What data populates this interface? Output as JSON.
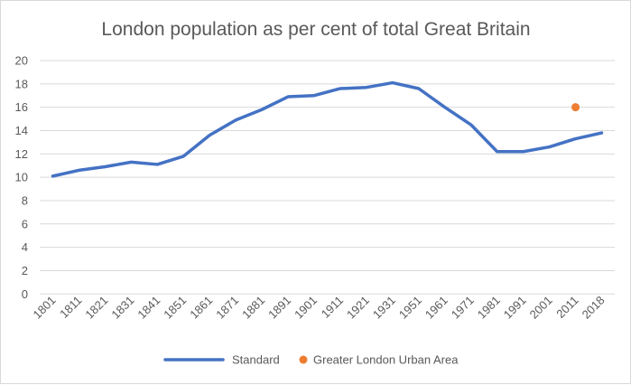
{
  "chart_data": {
    "type": "line",
    "title": "London population as per cent of total Great Britain",
    "xlabel": "",
    "ylabel": "",
    "categories": [
      "1801",
      "1811",
      "1821",
      "1831",
      "1841",
      "1851",
      "1861",
      "1871",
      "1881",
      "1891",
      "1901",
      "1911",
      "1921",
      "1931",
      "1951",
      "1961",
      "1971",
      "1981",
      "1991",
      "2001",
      "2011",
      "2018"
    ],
    "ylim": [
      0,
      20
    ],
    "yticks": [
      0,
      2,
      4,
      6,
      8,
      10,
      12,
      14,
      16,
      18,
      20
    ],
    "grid": true,
    "legend_position": "bottom",
    "series": [
      {
        "name": "Standard",
        "kind": "line",
        "color": "#4472C4",
        "values": [
          10.1,
          10.6,
          10.9,
          11.3,
          11.1,
          11.8,
          13.6,
          14.9,
          15.8,
          16.9,
          17.0,
          17.6,
          17.7,
          18.1,
          17.6,
          16.0,
          14.5,
          12.2,
          12.2,
          12.6,
          13.3,
          13.8
        ]
      },
      {
        "name": "Greater London Urban Area",
        "kind": "scatter",
        "color": "#ED7D31",
        "values": [
          null,
          null,
          null,
          null,
          null,
          null,
          null,
          null,
          null,
          null,
          null,
          null,
          null,
          null,
          null,
          null,
          null,
          null,
          null,
          null,
          16.0,
          null
        ]
      }
    ]
  }
}
